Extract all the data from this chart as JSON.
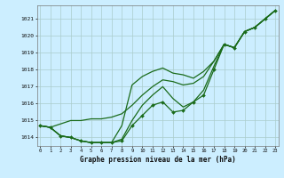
{
  "xlabel": "Graphe pression niveau de la mer (hPa)",
  "background_color": "#cceeff",
  "grid_color": "#aacccc",
  "line_color": "#1a6b1a",
  "x_ticks": [
    0,
    1,
    2,
    3,
    4,
    5,
    6,
    7,
    8,
    9,
    10,
    11,
    12,
    13,
    14,
    15,
    16,
    17,
    18,
    19,
    20,
    21,
    22,
    23
  ],
  "xlim": [
    -0.3,
    23.3
  ],
  "ylim": [
    1013.5,
    1021.8
  ],
  "yticks": [
    1014,
    1015,
    1016,
    1017,
    1018,
    1019,
    1020,
    1021
  ],
  "series_marked": [
    1014.7,
    1014.6,
    1014.1,
    1014.0,
    1013.8,
    1013.7,
    1013.7,
    1013.7,
    1013.8,
    1014.7,
    1015.3,
    1015.9,
    1016.1,
    1015.5,
    1015.6,
    1016.1,
    1016.5,
    1018.0,
    1019.5,
    1019.3,
    1020.25,
    1020.5,
    1021.0,
    1021.5
  ],
  "series2": [
    1014.7,
    1014.6,
    1014.1,
    1014.0,
    1013.8,
    1013.7,
    1013.7,
    1013.7,
    1013.9,
    1015.0,
    1015.9,
    1016.5,
    1017.0,
    1016.3,
    1015.8,
    1016.1,
    1016.8,
    1018.2,
    1019.5,
    1019.3,
    1020.25,
    1020.5,
    1021.0,
    1021.5
  ],
  "series3": [
    1014.7,
    1014.6,
    1014.8,
    1015.0,
    1015.0,
    1015.1,
    1015.1,
    1015.2,
    1015.4,
    1015.9,
    1016.5,
    1017.0,
    1017.4,
    1017.3,
    1017.1,
    1017.2,
    1017.6,
    1018.5,
    1019.5,
    1019.3,
    1020.25,
    1020.5,
    1021.0,
    1021.5
  ],
  "series4": [
    1014.7,
    1014.6,
    1014.1,
    1014.0,
    1013.8,
    1013.7,
    1013.7,
    1013.7,
    1014.7,
    1017.1,
    1017.6,
    1017.9,
    1018.1,
    1017.8,
    1017.7,
    1017.5,
    1017.9,
    1018.5,
    1019.5,
    1019.3,
    1020.25,
    1020.5,
    1021.0,
    1021.5
  ]
}
